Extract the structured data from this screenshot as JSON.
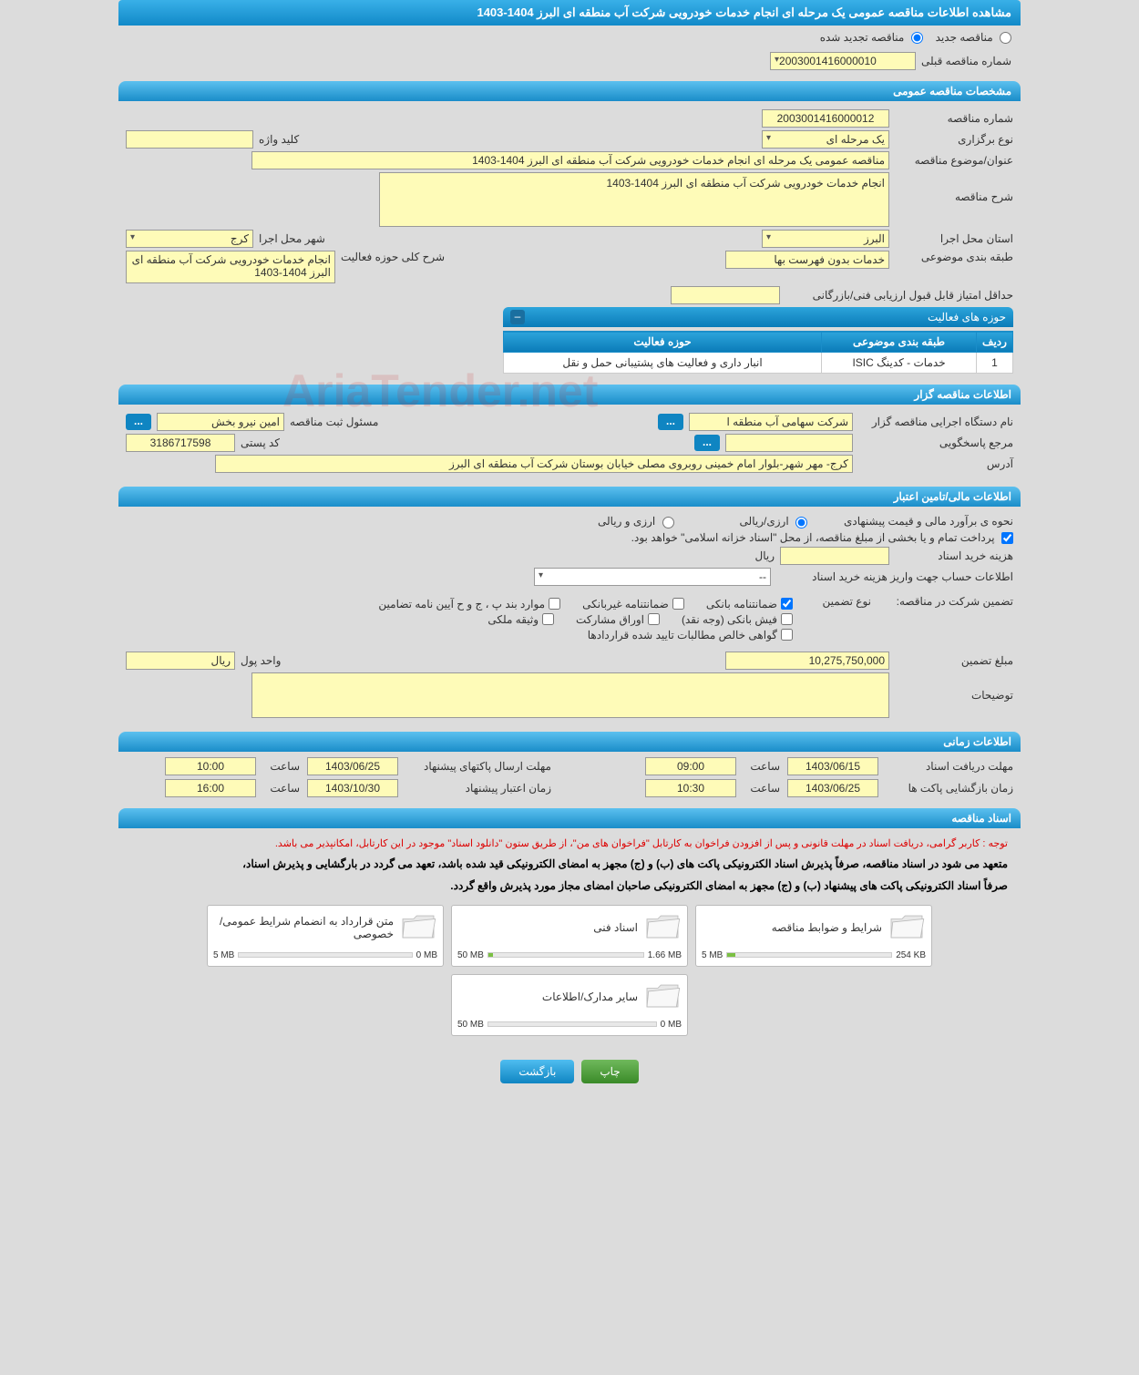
{
  "page_title": "مشاهده اطلاعات مناقصه عمومی یک مرحله ای انجام خدمات خودرویی شرکت آب منطقه ای البرز 1404-1403",
  "radios": {
    "new_tender": "مناقصه جدید",
    "renewed_tender": "مناقصه تجدید شده"
  },
  "prev_number_label": "شماره مناقصه قبلی",
  "prev_number_value": "2003001416000010",
  "sections": {
    "general": "مشخصات مناقصه عمومی",
    "issuer": "اطلاعات مناقصه گزار",
    "finance": "اطلاعات مالی/تامین اعتبار",
    "timing": "اطلاعات زمانی",
    "docs": "اسناد مناقصه"
  },
  "general": {
    "number_label": "شماره مناقصه",
    "number_value": "2003001416000012",
    "type_label": "نوع برگزاری",
    "type_value": "یک مرحله ای",
    "keyword_label": "کلید واژه",
    "keyword_value": "",
    "title_label": "عنوان/موضوع مناقصه",
    "title_value": "مناقصه عمومی یک مرحله ای انجام خدمات خودرویی شرکت آب منطقه ای البرز 1404-1403",
    "desc_label": "شرح مناقصه",
    "desc_value": "انجام خدمات خودرویی شرکت آب منطقه ای البرز 1404-1403",
    "province_label": "استان محل اجرا",
    "province_value": "البرز",
    "city_label": "شهر محل اجرا",
    "city_value": "کرج",
    "category_label": "طبقه بندی موضوعی",
    "category_value": "خدمات بدون فهرست بها",
    "scope_label": "شرح کلی حوزه فعالیت",
    "scope_value": "انجام خدمات خودرویی شرکت آب منطقه ای البرز 1404-1403",
    "min_score_label": "حداقل امتیاز قابل قبول ارزیابی فنی/بازرگانی",
    "min_score_value": "",
    "activity_table": {
      "header": "حوزه های فعالیت",
      "cols": [
        "ردیف",
        "طبقه بندی موضوعی",
        "حوزه فعالیت"
      ],
      "rows": [
        [
          "1",
          "خدمات - کدینگ ISIC",
          "انبار داری و فعالیت های پشتیبانی حمل و نقل"
        ]
      ]
    }
  },
  "issuer": {
    "org_label": "نام دستگاه اجرایی مناقصه گزار",
    "org_value": "شرکت سهامی آب منطقه ا",
    "responsible_label": "مسئول ثبت مناقصه",
    "responsible_value": "امین  نیرو بخش",
    "inquiry_label": "مرجع پاسخگویی",
    "inquiry_value": "",
    "postal_label": "کد پستی",
    "postal_value": "3186717598",
    "address_label": "آدرس",
    "address_value": "کرج- مهر شهر-بلوار امام خمینی روبروی مصلی خیابان بوستان شرکت آب منطقه ای البرز",
    "dots": "..."
  },
  "finance": {
    "method_label": "نحوه ی برآورد مالی و قیمت پیشنهادی",
    "opt_rial": "ارزی/ریالی",
    "opt_both": "ارزی و ریالی",
    "treasury_note": "پرداخت تمام و یا بخشی از مبلغ مناقصه، از محل \"اسناد خزانه اسلامی\" خواهد بود.",
    "doc_cost_label": "هزینه خرید اسناد",
    "rial": "ریال",
    "account_label": "اطلاعات حساب جهت واریز هزینه خرید اسناد",
    "account_value": "--",
    "guarantee_hdr": "تضمین شرکت در مناقصه:",
    "guarantee_type_label": "نوع تضمین",
    "checks": {
      "bank_guarantee": "ضمانتنامه بانکی",
      "nonbank_guarantee": "ضمانتنامه غیربانکی",
      "regulation": "موارد بند پ ، ج و ح آیین نامه تضامین",
      "cash": "فیش بانکی (وجه نقد)",
      "bonds": "اوراق مشارکت",
      "property": "وثیقه ملکی",
      "clearance": "گواهی خالص مطالبات تایید شده قراردادها"
    },
    "guarantee_amount_label": "مبلغ تضمین",
    "guarantee_amount_value": "10,275,750,000",
    "currency_label": "واحد پول",
    "currency_value": "ریال",
    "notes_label": "توضیحات",
    "notes_value": ""
  },
  "timing": {
    "doc_receive_label": "مهلت دریافت اسناد",
    "doc_receive_date": "1403/06/15",
    "doc_receive_time": "09:00",
    "packet_send_label": "مهلت ارسال پاکتهای پیشنهاد",
    "packet_send_date": "1403/06/25",
    "packet_send_time": "10:00",
    "open_label": "زمان بازگشایی پاکت ها",
    "open_date": "1403/06/25",
    "open_time": "10:30",
    "credit_label": "زمان اعتبار پیشنهاد",
    "credit_date": "1403/10/30",
    "credit_time": "16:00",
    "saat": "ساعت"
  },
  "docs": {
    "red_note": "توجه : کاربر گرامی، دریافت اسناد در مهلت قانونی و پس از افزودن فراخوان به کارتابل \"فراخوان های من\"، از طریق ستون \"دانلود اسناد\" موجود در این کارتابل، امکانپذیر می باشد.",
    "blk_note_1": "متعهد می شود در اسناد مناقصه، صرفاً پذیرش اسناد الکترونیکی پاکت های (ب) و (ج) مجهز به امضای الکترونیکی قید شده باشد، تعهد می گردد در بارگشایی و پذیرش اسناد،",
    "blk_note_2": "صرفاً اسناد الکترونیکی پاکت های پیشنهاد (ب) و (ج) مجهز به امضای الکترونیکی صاحبان امضای مجاز مورد پذیرش واقع گردد.",
    "cards": [
      {
        "title": "شرایط و ضوابط مناقصه",
        "used": "254 KB",
        "max": "5 MB",
        "pct": 5
      },
      {
        "title": "اسناد فنی",
        "used": "1.66 MB",
        "max": "50 MB",
        "pct": 3
      },
      {
        "title": "متن قرارداد به انضمام شرایط عمومی/خصوصی",
        "used": "0 MB",
        "max": "5 MB",
        "pct": 0
      },
      {
        "title": "سایر مدارک/اطلاعات",
        "used": "0 MB",
        "max": "50 MB",
        "pct": 0
      }
    ]
  },
  "buttons": {
    "print": "چاپ",
    "back": "بازگشت"
  },
  "watermark": "AriaTender.net"
}
